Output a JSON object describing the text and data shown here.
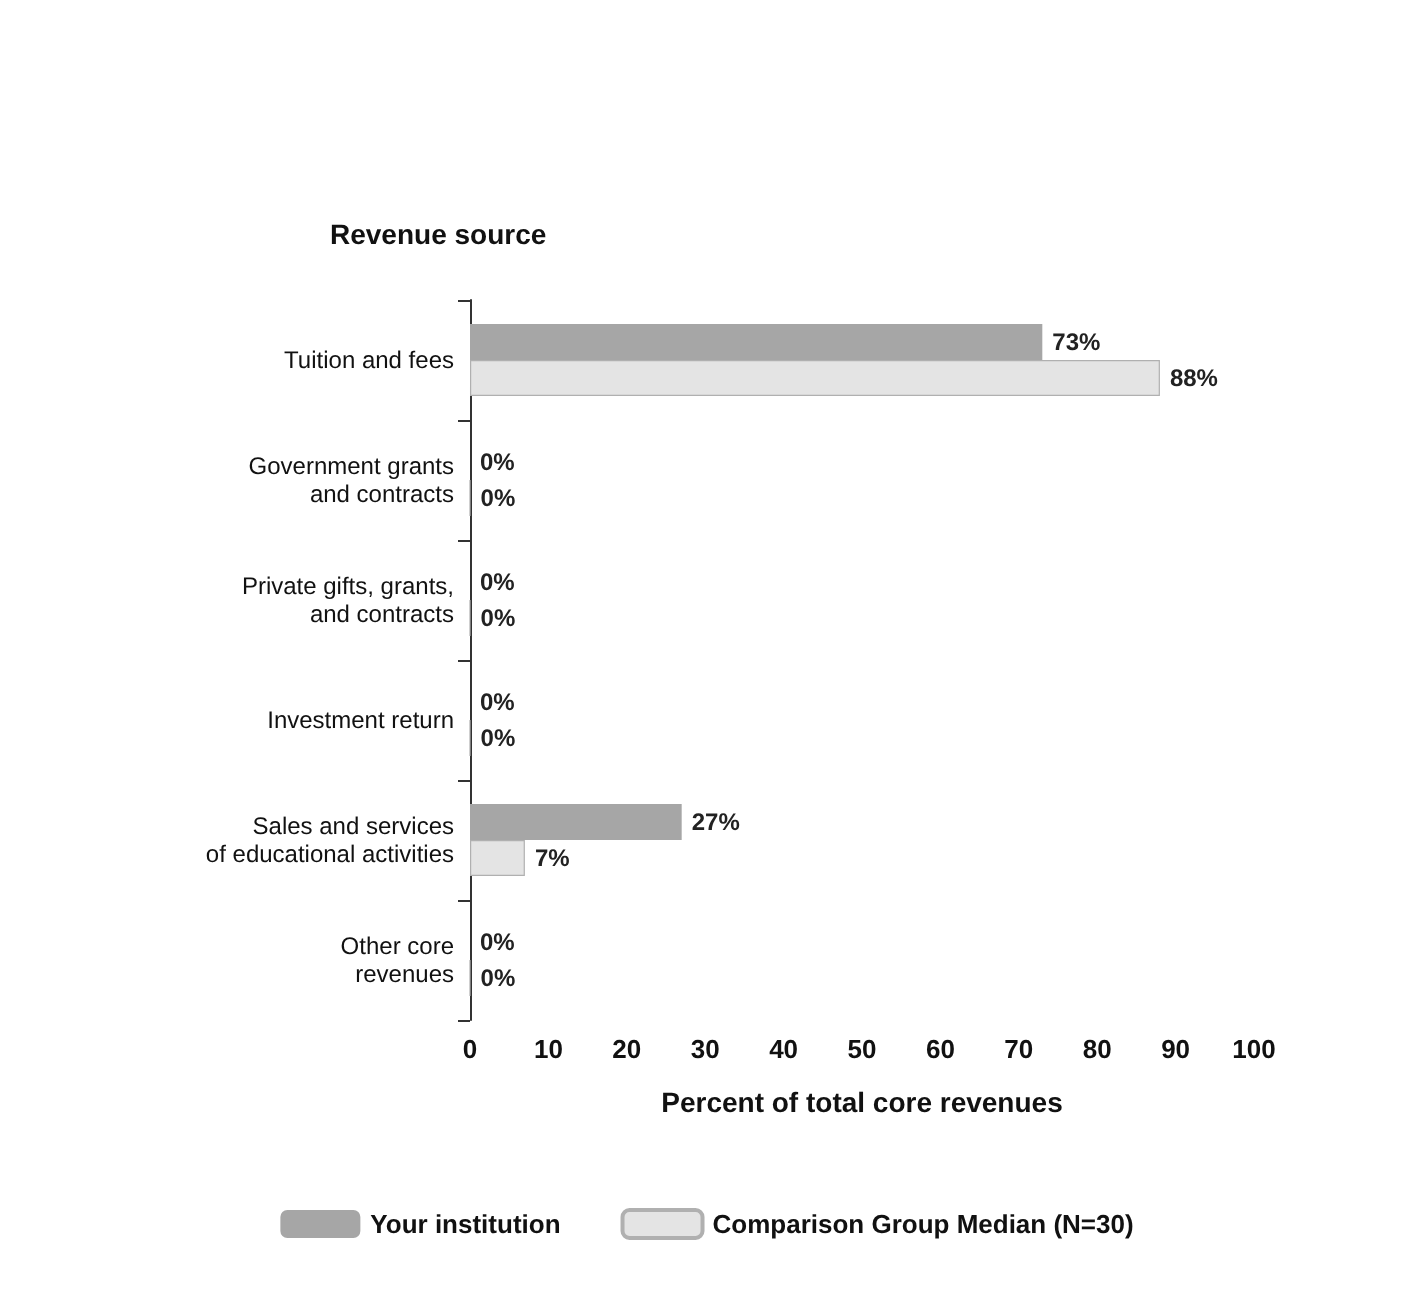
{
  "chart_data": {
    "type": "bar",
    "orientation": "horizontal",
    "title": "Revenue source",
    "xlabel": "Percent of total core revenues",
    "categories": [
      "Tuition and fees",
      "Government grants\nand contracts",
      "Private gifts, grants,\nand contracts",
      "Investment return",
      "Sales and services\nof educational activities",
      "Other core\nrevenues"
    ],
    "series": [
      {
        "name": "Your institution",
        "color": "#a6a6a6",
        "values": [
          73,
          0,
          0,
          0,
          27,
          0
        ],
        "value_labels": [
          "73%",
          "0%",
          "0%",
          "0%",
          "27%",
          "0%"
        ]
      },
      {
        "name": "Comparison Group Median (N=30)",
        "color": "#e4e4e4",
        "values": [
          88,
          0,
          0,
          0,
          7,
          0
        ],
        "value_labels": [
          "88%",
          "0%",
          "0%",
          "0%",
          "7%",
          "0%"
        ]
      }
    ],
    "xlim": [
      0,
      100
    ],
    "xticks": [
      0,
      10,
      20,
      30,
      40,
      50,
      60,
      70,
      80,
      90,
      100
    ],
    "grid": false,
    "legend": "bottom"
  }
}
